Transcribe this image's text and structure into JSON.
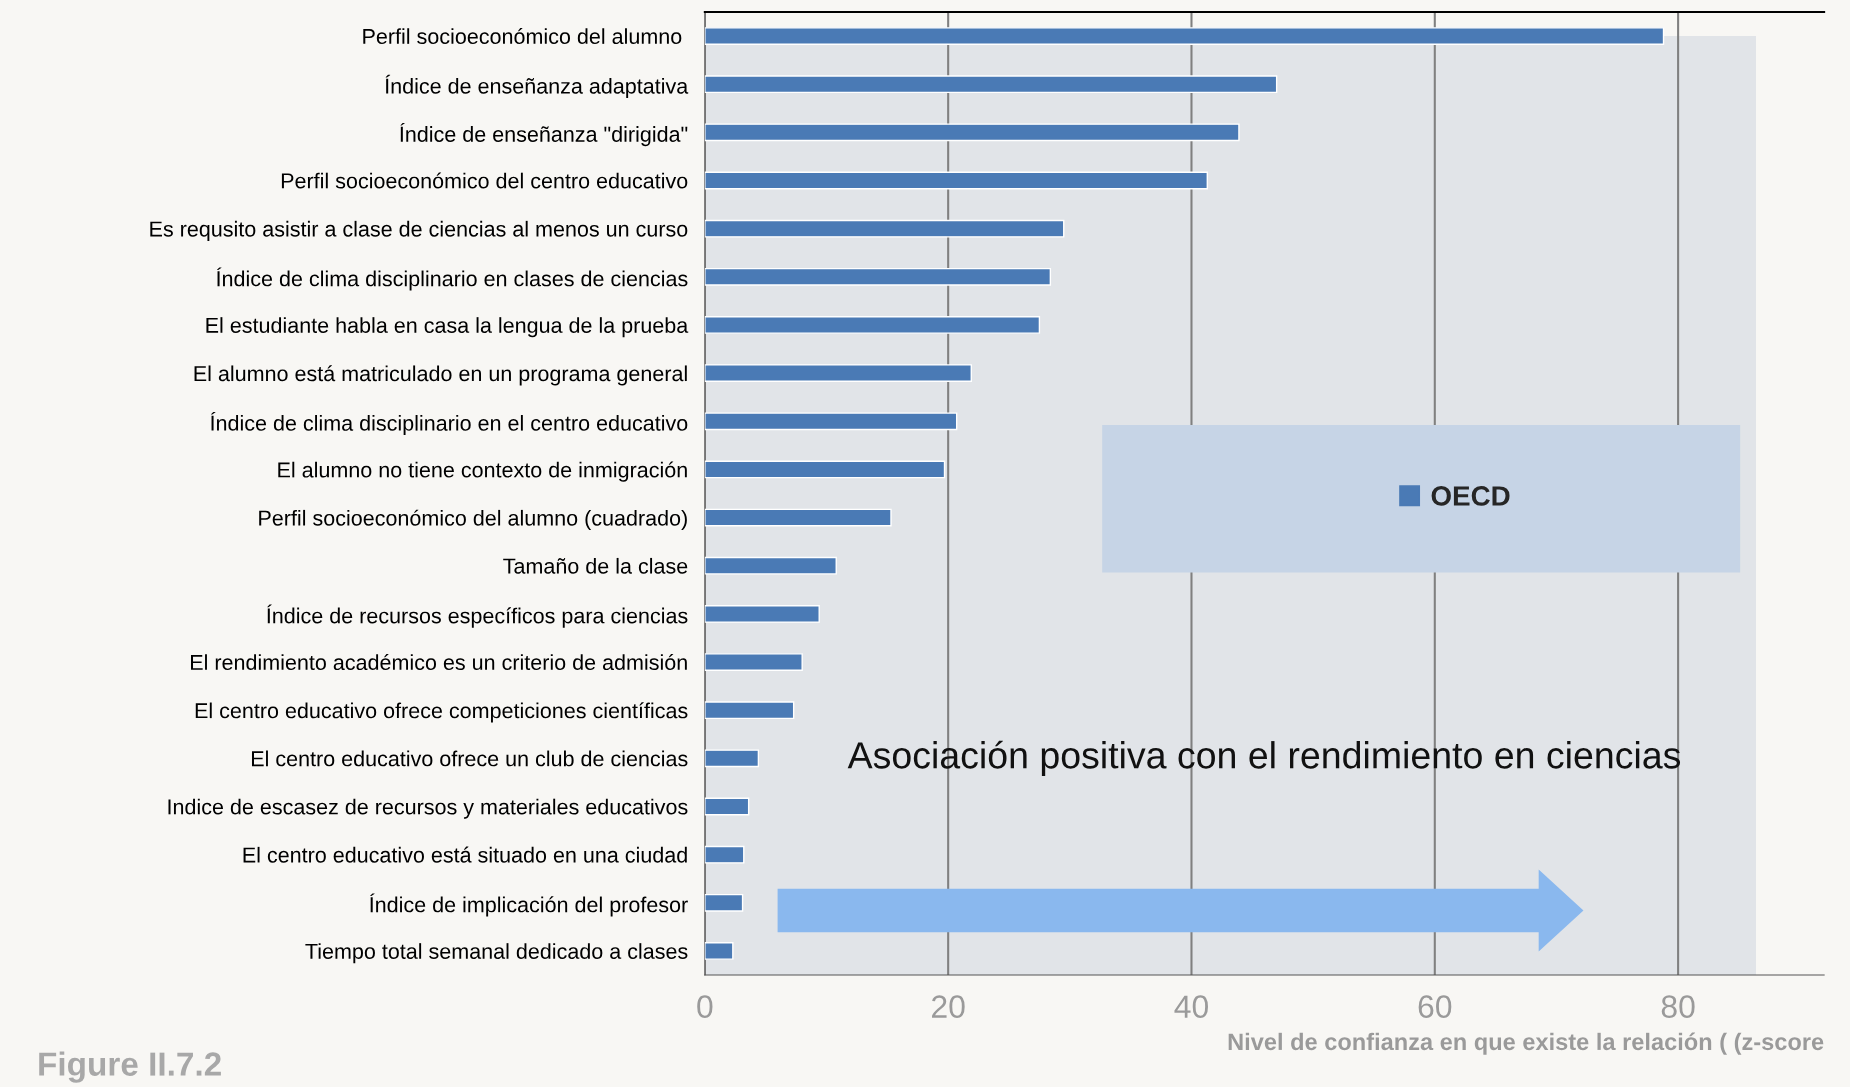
{
  "chart_data": {
    "type": "bar",
    "orientation": "horizontal",
    "xlabel": "Nivel de confianza en que existe la relación ( (z-score",
    "categories": [
      "Perfil socioeconómico del alumno ",
      "Índice de enseñanza adaptativa",
      "Índice de enseñanza \"dirigida\"",
      "Perfil socioeconómico del centro educativo",
      "Es requsito asistir a clase de ciencias al menos un curso",
      "Índice de clima disciplinario en clases de ciencias",
      "El estudiante habla en casa la lengua de la prueba",
      "El alumno está matriculado en un programa general",
      "Índice de clima disciplinario en el centro educativo",
      "El alumno no tiene contexto de inmigración",
      "Perfil socioeconómico del alumno (cuadrado)",
      "Tamaño de la clase",
      "Índice de recursos específicos para ciencias",
      "El rendimiento académico es un criterio de admisión",
      "El centro educativo ofrece competiciones científicas",
      "El centro educativo ofrece un club de ciencias",
      "Indice de escasez de recursos y materiales educativos",
      "El centro educativo está situado en una ciudad",
      "Índice de implicación del profesor",
      "Tiempo total semanal dedicado a clases"
    ],
    "series": [
      {
        "name": "OECD",
        "color": "#4a7ab5",
        "values": [
          78.8,
          47.0,
          43.9,
          41.3,
          29.5,
          28.4,
          27.5,
          21.9,
          20.7,
          19.7,
          15.3,
          10.8,
          9.4,
          8.0,
          7.3,
          4.4,
          3.6,
          3.2,
          3.1,
          2.3
        ]
      }
    ],
    "xlim": [
      0,
      92
    ],
    "xticks": [
      0,
      20,
      40,
      60,
      80
    ],
    "bands": [
      {
        "axis": "x",
        "from": 0,
        "to": 86.4,
        "color": "#e1e4e8"
      }
    ],
    "grid": "x",
    "legend": "center right",
    "annotations": [
      "Asociación positiva con el rendimiento en ciencias",
      "Figure II.7.2"
    ]
  }
}
